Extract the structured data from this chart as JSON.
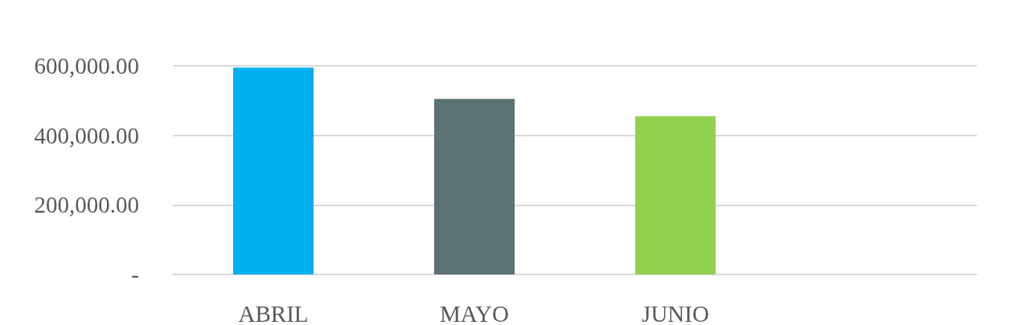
{
  "chart_data": {
    "type": "bar",
    "categories": [
      "ABRIL",
      "MAYO",
      "JUNIO",
      null
    ],
    "values": [
      595000,
      505000,
      455000,
      null
    ],
    "colors": [
      "#00b0f0",
      "#5b7174",
      "#92d050",
      null
    ],
    "ylim": [
      0,
      600000
    ],
    "yticks": [
      {
        "value": 0,
        "label": "-"
      },
      {
        "value": 200000,
        "label": "200,000.00"
      },
      {
        "value": 400000,
        "label": "400,000.00"
      },
      {
        "value": 600000,
        "label": "600,000.00"
      }
    ],
    "grid": "y"
  }
}
